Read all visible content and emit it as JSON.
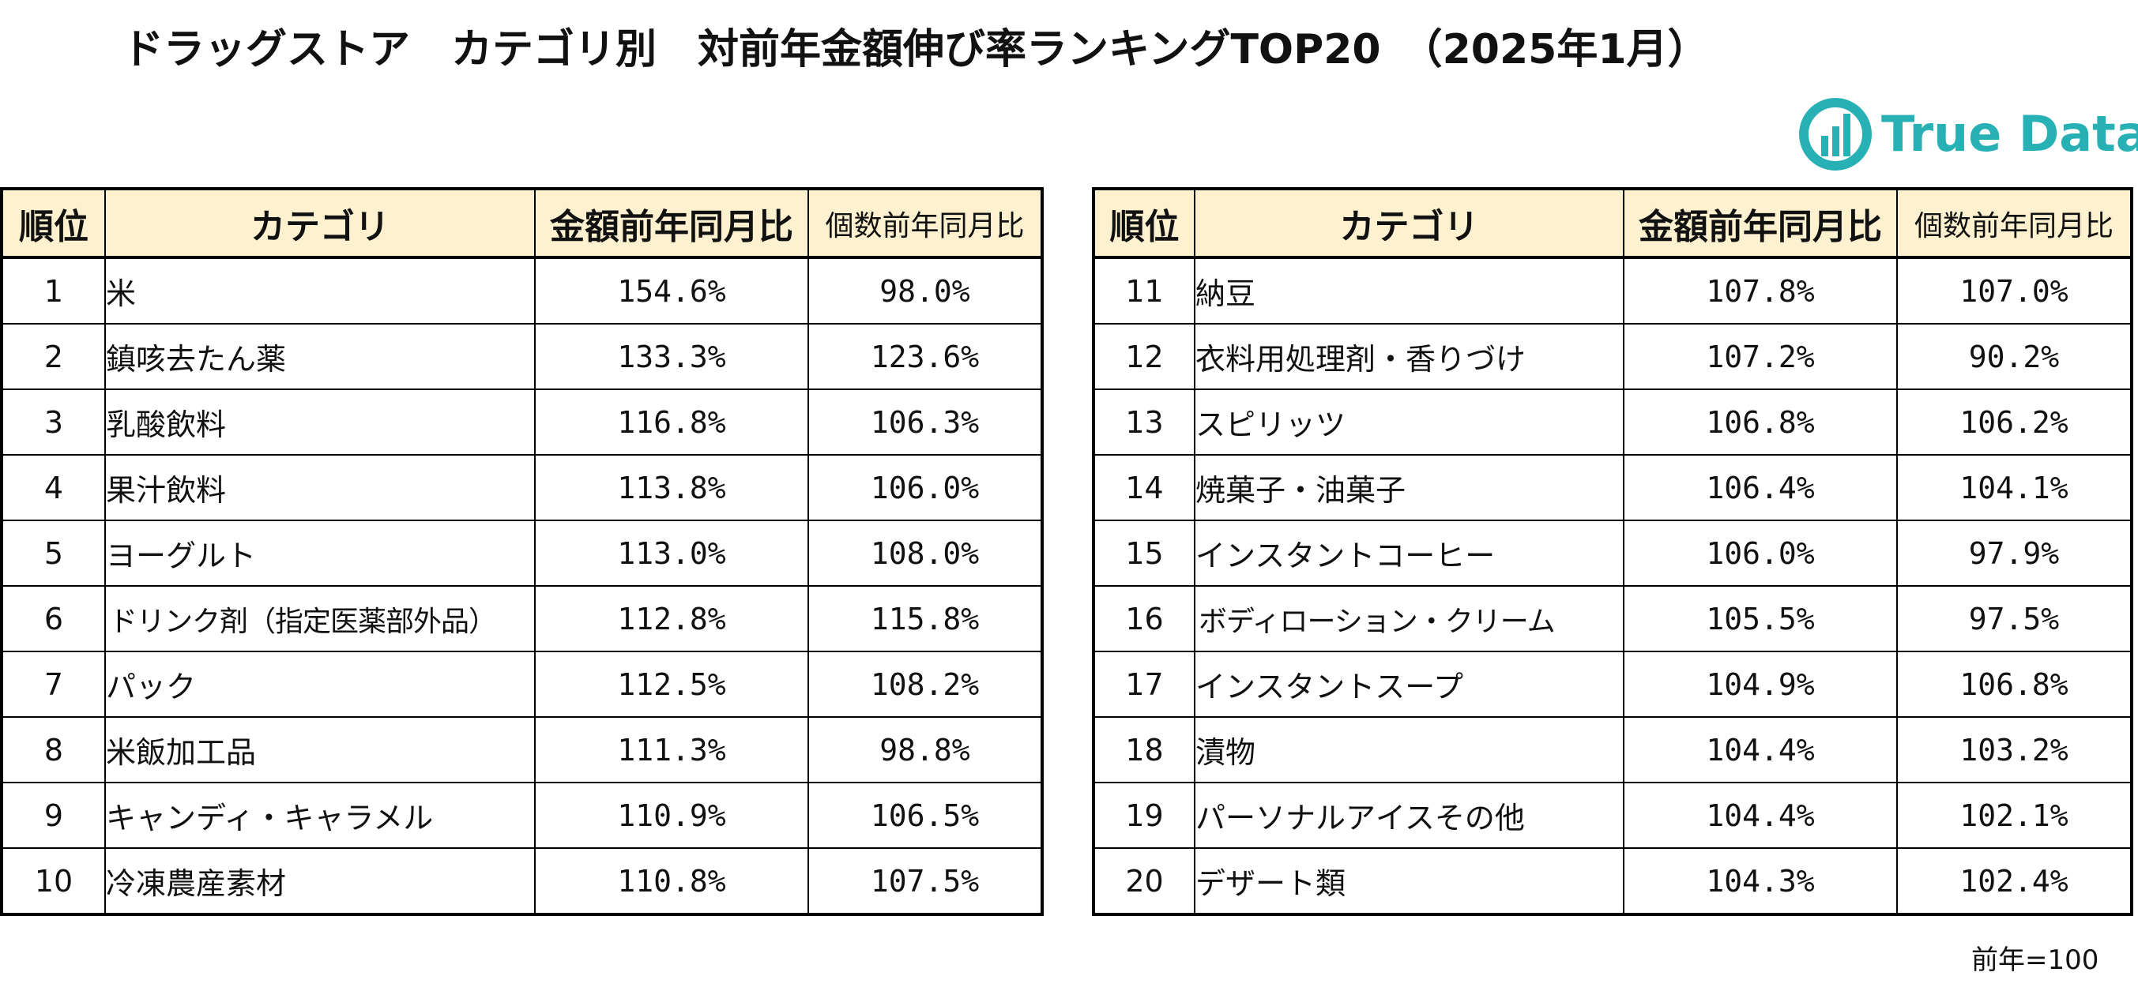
{
  "title": "ドラッグストア　カテゴリ別　対前年金額伸び率ランキングTOP20　（2025年1月）",
  "logo": {
    "text": "True Data",
    "color": "#28b1b4"
  },
  "columns": {
    "rank": "順位",
    "category": "カテゴリ",
    "amount": "金額前年同月比",
    "quantity": "個数前年同月比"
  },
  "header_bg": "#fdf1cf",
  "rows_left": [
    {
      "rank": "1",
      "category": "米",
      "amount": "154.6%",
      "quantity": "98.0%"
    },
    {
      "rank": "2",
      "category": "鎮咳去たん薬",
      "amount": "133.3%",
      "quantity": "123.6%"
    },
    {
      "rank": "3",
      "category": "乳酸飲料",
      "amount": "116.8%",
      "quantity": "106.3%"
    },
    {
      "rank": "4",
      "category": "果汁飲料",
      "amount": "113.8%",
      "quantity": "106.0%"
    },
    {
      "rank": "5",
      "category": "ヨーグルト",
      "amount": "113.0%",
      "quantity": "108.0%"
    },
    {
      "rank": "6",
      "category": "ドリンク剤（指定医薬部外品）",
      "amount": "112.8%",
      "quantity": "115.8%"
    },
    {
      "rank": "7",
      "category": "パック",
      "amount": "112.5%",
      "quantity": "108.2%"
    },
    {
      "rank": "8",
      "category": "米飯加工品",
      "amount": "111.3%",
      "quantity": "98.8%"
    },
    {
      "rank": "9",
      "category": "キャンディ・キャラメル",
      "amount": "110.9%",
      "quantity": "106.5%"
    },
    {
      "rank": "10",
      "category": "冷凍農産素材",
      "amount": "110.8%",
      "quantity": "107.5%"
    }
  ],
  "rows_right": [
    {
      "rank": "11",
      "category": "納豆",
      "amount": "107.8%",
      "quantity": "107.0%"
    },
    {
      "rank": "12",
      "category": "衣料用処理剤・香りづけ",
      "amount": "107.2%",
      "quantity": "90.2%"
    },
    {
      "rank": "13",
      "category": "スピリッツ",
      "amount": "106.8%",
      "quantity": "106.2%"
    },
    {
      "rank": "14",
      "category": "焼菓子・油菓子",
      "amount": "106.4%",
      "quantity": "104.1%"
    },
    {
      "rank": "15",
      "category": "インスタントコーヒー",
      "amount": "106.0%",
      "quantity": "97.9%"
    },
    {
      "rank": "16",
      "category": "ボディローション・クリーム",
      "amount": "105.5%",
      "quantity": "97.5%"
    },
    {
      "rank": "17",
      "category": "インスタントスープ",
      "amount": "104.9%",
      "quantity": "106.8%"
    },
    {
      "rank": "18",
      "category": "漬物",
      "amount": "104.4%",
      "quantity": "103.2%"
    },
    {
      "rank": "19",
      "category": "パーソナルアイスその他",
      "amount": "104.4%",
      "quantity": "102.1%"
    },
    {
      "rank": "20",
      "category": "デザート類",
      "amount": "104.3%",
      "quantity": "102.4%"
    }
  ],
  "footnote": "前年=100"
}
